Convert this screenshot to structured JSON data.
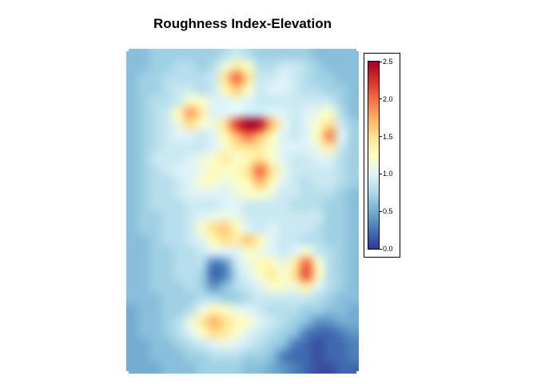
{
  "title": "Roughness Index-Elevation",
  "chart_data": {
    "type": "heatmap",
    "title": "Roughness Index-Elevation",
    "legend_position": "right",
    "colormap": "blue-cyan-yellow-orange-red (RdYlBu reversed)",
    "colormap_stops": [
      "#313695",
      "#4575b4",
      "#74add1",
      "#abd9e9",
      "#e0f3f8",
      "#ffffbf",
      "#fee090",
      "#fdae61",
      "#f46d43",
      "#d73027",
      "#a50026"
    ],
    "vmin": 0.0,
    "vmax": 2.5,
    "colorbar_ticks": [
      "0.0",
      "0.5",
      "1.0",
      "1.5",
      "2.0",
      "2.5"
    ],
    "ncols": 20,
    "nrows": 28,
    "values": [
      [
        0.6,
        0.6,
        0.7,
        0.7,
        0.7,
        0.7,
        0.7,
        0.7,
        0.8,
        0.9,
        0.8,
        0.7,
        0.7,
        0.7,
        0.7,
        0.7,
        0.6,
        0.6,
        0.6,
        0.6
      ],
      [
        0.6,
        0.6,
        0.7,
        0.7,
        0.8,
        0.8,
        0.7,
        0.8,
        1.1,
        1.4,
        1.2,
        0.8,
        0.8,
        0.9,
        0.9,
        0.8,
        0.7,
        0.6,
        0.6,
        0.6
      ],
      [
        0.6,
        0.7,
        0.7,
        0.8,
        0.8,
        0.8,
        0.8,
        0.9,
        1.5,
        2.0,
        1.5,
        0.9,
        0.9,
        1.0,
        0.9,
        0.8,
        0.7,
        0.7,
        0.6,
        0.6
      ],
      [
        0.6,
        0.7,
        0.7,
        0.8,
        0.9,
        0.9,
        0.8,
        0.9,
        1.3,
        1.6,
        1.2,
        0.9,
        1.0,
        1.0,
        0.9,
        0.8,
        0.8,
        0.7,
        0.7,
        0.6
      ],
      [
        0.6,
        0.7,
        0.8,
        0.8,
        0.9,
        1.2,
        1.2,
        1.0,
        1.0,
        1.1,
        1.0,
        0.9,
        0.9,
        0.9,
        0.9,
        0.9,
        0.9,
        0.9,
        0.7,
        0.6
      ],
      [
        0.6,
        0.7,
        0.8,
        0.9,
        1.3,
        1.8,
        1.4,
        1.0,
        1.0,
        1.0,
        0.9,
        0.9,
        1.0,
        1.0,
        0.9,
        1.0,
        1.1,
        1.2,
        0.8,
        0.6
      ],
      [
        0.6,
        0.7,
        0.8,
        0.9,
        1.1,
        1.5,
        1.2,
        1.1,
        1.5,
        2.2,
        2.5,
        2.4,
        1.7,
        1.1,
        0.9,
        1.0,
        1.2,
        1.5,
        0.9,
        0.7
      ],
      [
        0.6,
        0.7,
        0.8,
        0.9,
        1.0,
        1.0,
        0.9,
        1.0,
        1.3,
        1.7,
        2.0,
        1.7,
        1.3,
        1.0,
        0.9,
        1.0,
        1.3,
        1.9,
        1.0,
        0.7
      ],
      [
        0.6,
        0.7,
        0.8,
        0.9,
        0.9,
        0.9,
        0.9,
        1.0,
        1.2,
        1.4,
        1.5,
        1.4,
        1.2,
        1.0,
        1.0,
        1.0,
        1.1,
        1.4,
        0.9,
        0.7
      ],
      [
        0.6,
        0.7,
        0.9,
        0.9,
        0.9,
        1.0,
        1.1,
        1.2,
        1.4,
        1.2,
        1.3,
        1.5,
        1.2,
        1.0,
        0.9,
        0.9,
        1.0,
        1.0,
        0.8,
        0.7
      ],
      [
        0.6,
        0.7,
        0.8,
        0.9,
        1.0,
        1.0,
        1.1,
        1.3,
        1.2,
        1.3,
        1.5,
        2.0,
        1.5,
        1.1,
        0.9,
        0.9,
        0.9,
        0.9,
        0.8,
        0.7
      ],
      [
        0.6,
        0.7,
        0.8,
        0.8,
        0.9,
        1.0,
        1.2,
        1.2,
        1.1,
        1.2,
        1.3,
        1.7,
        1.3,
        1.0,
        0.9,
        0.8,
        0.9,
        0.9,
        0.8,
        0.7
      ],
      [
        0.6,
        0.7,
        0.8,
        0.8,
        0.9,
        1.0,
        1.0,
        1.0,
        1.0,
        1.1,
        1.2,
        1.2,
        1.1,
        0.9,
        0.9,
        0.8,
        0.8,
        0.8,
        0.7,
        0.6
      ],
      [
        0.6,
        0.7,
        0.8,
        0.8,
        0.8,
        0.9,
        0.9,
        0.9,
        1.0,
        1.0,
        0.9,
        0.9,
        0.9,
        0.9,
        0.8,
        0.8,
        0.8,
        0.7,
        0.7,
        0.6
      ],
      [
        0.6,
        0.7,
        0.7,
        0.8,
        0.8,
        0.9,
        1.0,
        1.1,
        1.1,
        1.1,
        0.9,
        0.9,
        0.9,
        0.9,
        0.9,
        0.9,
        0.9,
        0.7,
        0.7,
        0.6
      ],
      [
        0.6,
        0.7,
        0.7,
        0.8,
        0.8,
        0.9,
        1.2,
        1.5,
        1.6,
        1.3,
        1.0,
        0.9,
        1.0,
        0.9,
        0.9,
        0.9,
        0.8,
        0.7,
        0.7,
        0.6
      ],
      [
        0.6,
        0.6,
        0.7,
        0.8,
        0.8,
        0.9,
        1.0,
        1.3,
        1.5,
        1.4,
        1.6,
        1.3,
        1.0,
        0.9,
        0.9,
        0.8,
        0.8,
        0.7,
        0.7,
        0.6
      ],
      [
        0.6,
        0.6,
        0.7,
        0.7,
        0.8,
        0.8,
        0.9,
        1.0,
        1.0,
        1.0,
        1.2,
        1.1,
        1.0,
        0.9,
        1.0,
        1.2,
        0.9,
        0.8,
        0.7,
        0.6
      ],
      [
        0.6,
        0.6,
        0.7,
        0.7,
        0.8,
        0.8,
        0.8,
        0.3,
        0.4,
        0.9,
        1.1,
        1.3,
        1.3,
        1.1,
        1.4,
        2.0,
        1.2,
        0.8,
        0.7,
        0.6
      ],
      [
        0.6,
        0.6,
        0.7,
        0.7,
        0.8,
        0.8,
        0.7,
        0.2,
        0.3,
        0.8,
        1.0,
        1.2,
        1.4,
        1.2,
        1.5,
        2.1,
        1.3,
        0.8,
        0.7,
        0.6
      ],
      [
        0.6,
        0.6,
        0.7,
        0.7,
        0.7,
        0.8,
        0.7,
        0.4,
        0.6,
        0.8,
        0.9,
        1.0,
        1.2,
        1.2,
        1.1,
        1.4,
        1.0,
        0.8,
        0.7,
        0.6
      ],
      [
        0.6,
        0.6,
        0.6,
        0.7,
        0.7,
        0.7,
        0.8,
        0.8,
        0.7,
        0.7,
        0.8,
        0.9,
        0.9,
        0.9,
        0.9,
        0.9,
        0.8,
        0.7,
        0.6,
        0.6
      ],
      [
        0.5,
        0.6,
        0.6,
        0.7,
        0.7,
        0.8,
        1.1,
        1.3,
        1.2,
        1.1,
        1.0,
        0.9,
        0.8,
        0.8,
        0.8,
        0.7,
        0.7,
        0.6,
        0.6,
        0.5
      ],
      [
        0.5,
        0.6,
        0.6,
        0.7,
        0.8,
        1.1,
        1.4,
        1.7,
        1.5,
        1.3,
        1.2,
        1.0,
        0.9,
        0.8,
        0.7,
        0.6,
        0.4,
        0.4,
        0.5,
        0.5
      ],
      [
        0.5,
        0.6,
        0.6,
        0.7,
        0.8,
        1.0,
        1.2,
        1.5,
        1.4,
        1.2,
        1.0,
        0.9,
        0.8,
        0.7,
        0.6,
        0.3,
        0.2,
        0.2,
        0.3,
        0.4
      ],
      [
        0.5,
        0.5,
        0.6,
        0.6,
        0.7,
        0.8,
        0.9,
        1.0,
        1.1,
        1.0,
        0.9,
        0.8,
        0.7,
        0.6,
        0.3,
        0.2,
        0.1,
        0.2,
        0.2,
        0.3
      ],
      [
        0.5,
        0.5,
        0.6,
        0.6,
        0.6,
        0.7,
        0.7,
        0.8,
        0.8,
        0.8,
        0.7,
        0.7,
        0.6,
        0.3,
        0.2,
        0.2,
        0.1,
        0.2,
        0.2,
        0.3
      ],
      [
        0.5,
        0.5,
        0.5,
        0.6,
        0.6,
        0.6,
        0.7,
        0.7,
        0.7,
        0.7,
        0.6,
        0.6,
        0.5,
        0.4,
        0.3,
        0.2,
        0.1,
        0.1,
        0.2,
        0.2
      ]
    ]
  }
}
